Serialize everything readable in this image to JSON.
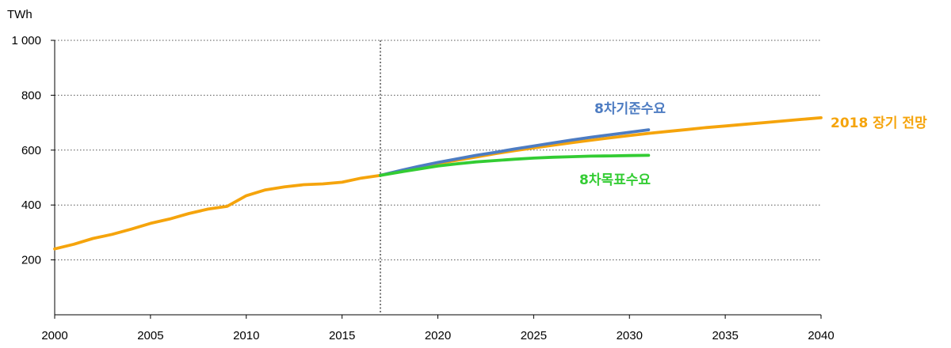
{
  "chart_data": {
    "type": "line",
    "unit": "TWh",
    "xlim": [
      2000,
      2040
    ],
    "ylim": [
      0,
      1000
    ],
    "x_ticks": [
      "2000",
      "2005",
      "2010",
      "2015",
      "2020",
      "2025",
      "2030",
      "2035",
      "2040"
    ],
    "y_ticks": [
      "200",
      "400",
      "600",
      "800",
      "1 000"
    ],
    "y_tick_values": [
      200,
      400,
      600,
      800,
      1000
    ],
    "grid": "horizontal dotted",
    "reference_line_x": 2017,
    "series": [
      {
        "name": "2018 장기 전망",
        "color": "#F5A40C",
        "x": [
          2000,
          2001,
          2002,
          2003,
          2004,
          2005,
          2006,
          2007,
          2008,
          2009,
          2010,
          2011,
          2012,
          2013,
          2014,
          2015,
          2016,
          2017,
          2018,
          2019,
          2020,
          2021,
          2022,
          2023,
          2024,
          2025,
          2026,
          2027,
          2028,
          2029,
          2030,
          2031,
          2032,
          2033,
          2034,
          2035,
          2036,
          2037,
          2038,
          2039,
          2040
        ],
        "y": [
          240,
          257,
          278,
          293,
          312,
          333,
          349,
          369,
          385,
          395,
          434,
          455,
          466,
          474,
          477,
          483,
          498,
          508,
          524,
          538,
          551,
          563,
          575,
          587,
          598,
          608,
          618,
          627,
          636,
          645,
          653,
          661,
          668,
          675,
          682,
          688,
          694,
          700,
          706,
          712,
          718
        ]
      },
      {
        "name": "8차기준수요",
        "color": "#4D7CC2",
        "x": [
          2017,
          2018,
          2019,
          2020,
          2021,
          2022,
          2023,
          2024,
          2025,
          2026,
          2027,
          2028,
          2029,
          2030,
          2031
        ],
        "y": [
          508,
          525,
          541,
          555,
          568,
          581,
          592,
          604,
          615,
          626,
          637,
          647,
          656,
          665,
          674
        ]
      },
      {
        "name": "8차목표수요",
        "color": "#33CC33",
        "x": [
          2017,
          2018,
          2019,
          2020,
          2021,
          2022,
          2023,
          2024,
          2025,
          2026,
          2027,
          2028,
          2029,
          2030,
          2031
        ],
        "y": [
          508,
          520,
          531,
          542,
          550,
          557,
          562,
          567,
          571,
          574,
          576,
          578,
          579,
          580,
          581
        ]
      }
    ]
  }
}
